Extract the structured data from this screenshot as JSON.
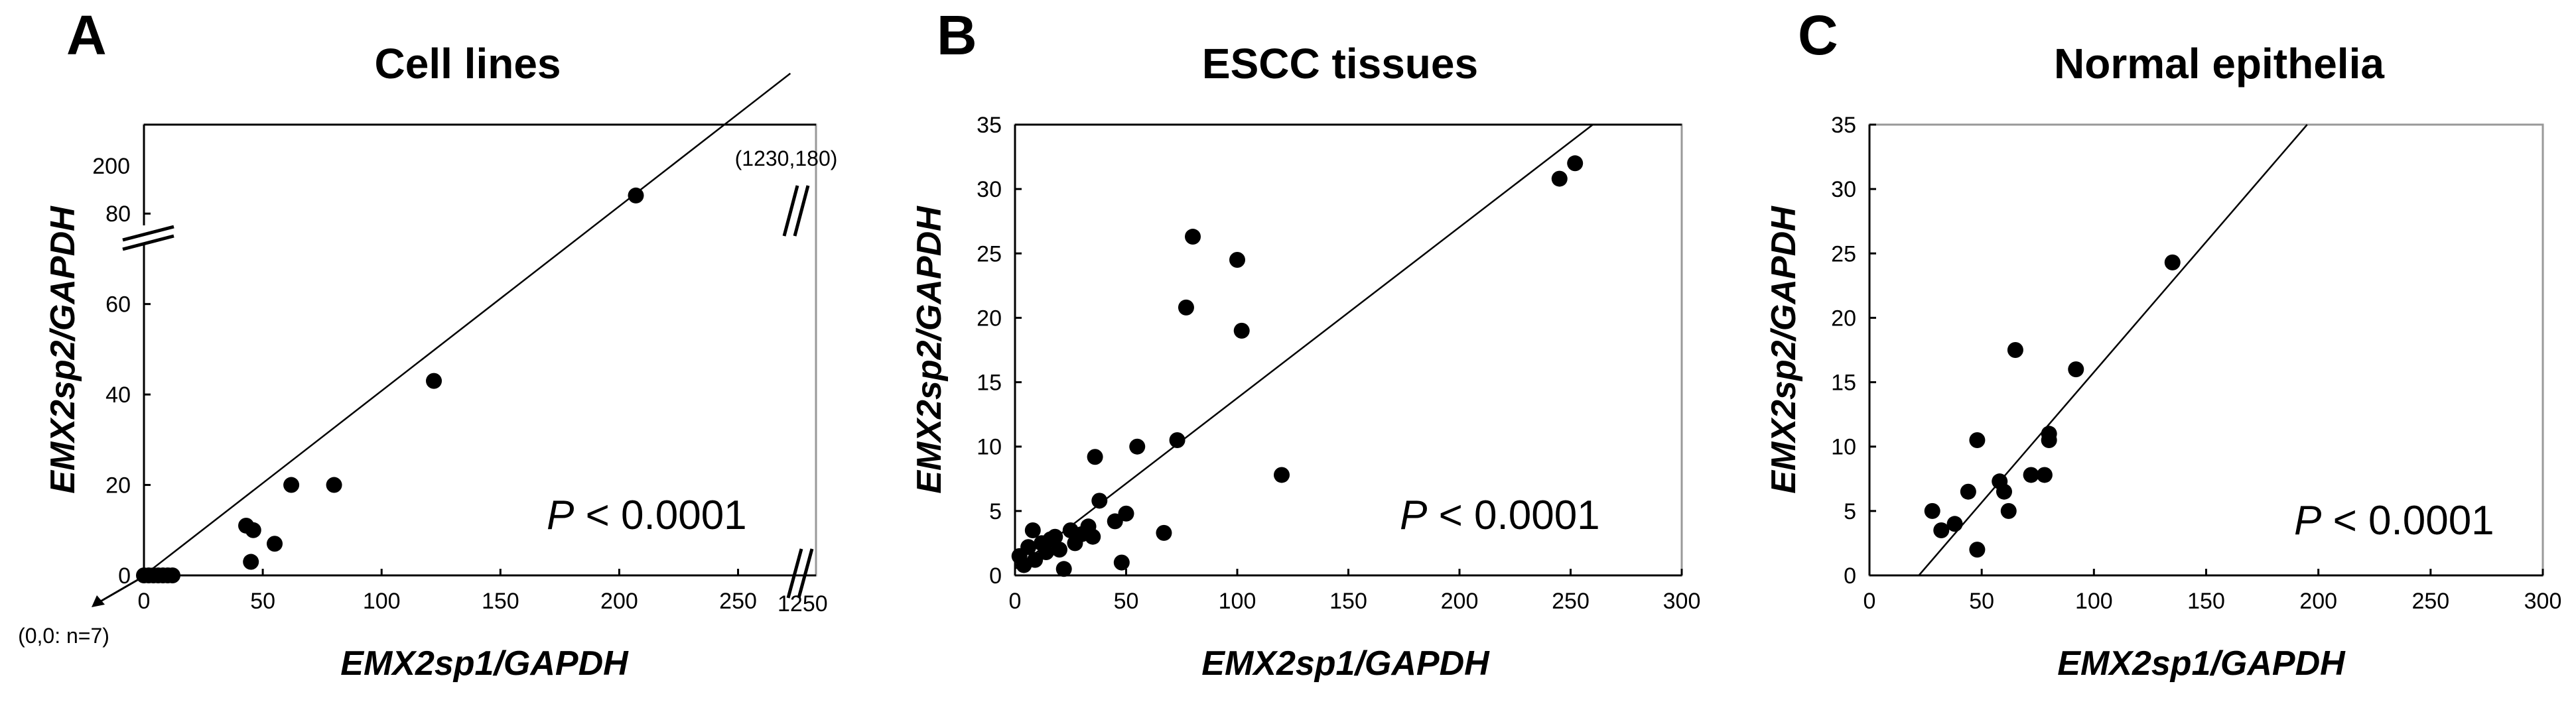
{
  "chart_data": [
    {
      "panel": "A",
      "type": "scatter",
      "title": "Cell lines",
      "xlabel": "EMX2sp1/GAPDH",
      "ylabel": "EMX2sp2/GAPDH",
      "xlim": [
        0,
        280
      ],
      "ylim": [
        0,
        90
      ],
      "xticks": [
        "0",
        "50",
        "100",
        "150",
        "200",
        "250"
      ],
      "xbreak_label": "1250",
      "yticks": [
        "0",
        "20",
        "40",
        "60",
        "80"
      ],
      "ybreak_label": "200",
      "grid": false,
      "annotation_p": "P < 0.0001",
      "annotation_top": "(1230,180)",
      "annotation_origin": "(0,0: n=7)",
      "regression": [
        [
          0,
          0
        ],
        [
          272,
          111
        ]
      ],
      "points": [
        [
          0,
          0
        ],
        [
          2,
          0
        ],
        [
          4,
          0
        ],
        [
          6,
          0
        ],
        [
          8,
          0
        ],
        [
          10,
          0
        ],
        [
          12,
          0
        ],
        [
          43,
          11
        ],
        [
          46,
          10
        ],
        [
          45,
          3
        ],
        [
          55,
          7
        ],
        [
          62,
          20
        ],
        [
          80,
          20
        ],
        [
          122,
          43
        ],
        [
          207,
          84
        ]
      ]
    },
    {
      "panel": "B",
      "type": "scatter",
      "title": "ESCC tissues",
      "xlabel": "EMX2sp1/GAPDH",
      "ylabel": "EMX2sp2/GAPDH",
      "xlim": [
        0,
        300
      ],
      "ylim": [
        0,
        35
      ],
      "xticks": [
        "0",
        "50",
        "100",
        "150",
        "200",
        "250",
        "300"
      ],
      "yticks": [
        "0",
        "5",
        "10",
        "15",
        "20",
        "25",
        "30",
        "35"
      ],
      "grid": false,
      "annotation_p": "P < 0.0001",
      "regression": [
        [
          0,
          0.5
        ],
        [
          260,
          35
        ]
      ],
      "points": [
        [
          2,
          1.5
        ],
        [
          4,
          0.8
        ],
        [
          6,
          2.2
        ],
        [
          8,
          3.5
        ],
        [
          9,
          1.2
        ],
        [
          12,
          2.5
        ],
        [
          14,
          1.8
        ],
        [
          16,
          2.8
        ],
        [
          18,
          3
        ],
        [
          20,
          2
        ],
        [
          22,
          0.5
        ],
        [
          25,
          3.5
        ],
        [
          27,
          2.5
        ],
        [
          30,
          3.2
        ],
        [
          33,
          3.8
        ],
        [
          35,
          3
        ],
        [
          36,
          9.2
        ],
        [
          38,
          5.8
        ],
        [
          45,
          4.2
        ],
        [
          48,
          1
        ],
        [
          50,
          4.8
        ],
        [
          55,
          10
        ],
        [
          67,
          3.3
        ],
        [
          73,
          10.5
        ],
        [
          77,
          20.8
        ],
        [
          80,
          26.3
        ],
        [
          100,
          24.5
        ],
        [
          102,
          19
        ],
        [
          120,
          7.8
        ],
        [
          245,
          30.8
        ],
        [
          252,
          32
        ]
      ]
    },
    {
      "panel": "C",
      "type": "scatter",
      "title": "Normal epithelia",
      "xlabel": "EMX2sp1/GAPDH",
      "ylabel": "EMX2sp2/GAPDH",
      "xlim": [
        0,
        300
      ],
      "ylim": [
        0,
        35
      ],
      "xticks": [
        "0",
        "50",
        "100",
        "150",
        "200",
        "250",
        "300"
      ],
      "yticks": [
        "0",
        "5",
        "10",
        "15",
        "20",
        "25",
        "30",
        "35"
      ],
      "grid": false,
      "annotation_p": "P < 0.0001",
      "regression": [
        [
          22,
          0
        ],
        [
          195,
          35
        ]
      ],
      "points": [
        [
          28,
          5
        ],
        [
          32,
          3.5
        ],
        [
          38,
          4
        ],
        [
          44,
          6.5
        ],
        [
          48,
          10.5
        ],
        [
          48,
          2
        ],
        [
          58,
          7.3
        ],
        [
          60,
          6.5
        ],
        [
          62,
          5
        ],
        [
          65,
          17.5
        ],
        [
          72,
          7.8
        ],
        [
          78,
          7.8
        ],
        [
          80,
          11
        ],
        [
          80,
          10.5
        ],
        [
          92,
          16
        ],
        [
          135,
          24.3
        ]
      ]
    }
  ]
}
